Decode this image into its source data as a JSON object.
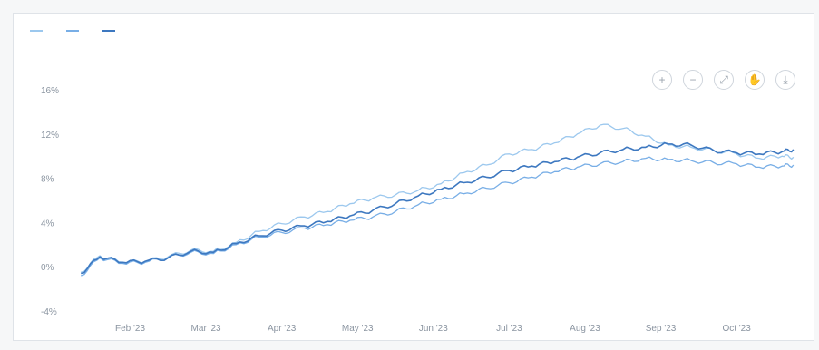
{
  "toolbar": {
    "zoom_in_label": "+",
    "zoom_out_label": "−",
    "autoscale_label": "⤢",
    "pan_label": "✋",
    "download_label": "⤓"
  },
  "chart_data": {
    "type": "line",
    "title": "",
    "xlabel": "",
    "ylabel": "",
    "legend_position": "top-left",
    "grid": false,
    "ylim": [
      -4,
      16
    ],
    "y_ticks": [
      -4,
      0,
      4,
      8,
      12,
      16
    ],
    "y_tick_labels": [
      "-4%",
      "0%",
      "4%",
      "8%",
      "12%",
      "16%"
    ],
    "x_tick_labels": [
      "Feb '23",
      "Mar '23",
      "Apr '23",
      "May '23",
      "Jun '23",
      "Jul '23",
      "Aug '23",
      "Sep '23",
      "Oct '23"
    ],
    "x_tick_positions": [
      1,
      2,
      3,
      4,
      5,
      6,
      7,
      8,
      9
    ],
    "xlim": [
      0.3,
      9.8
    ],
    "x": [
      0.35,
      0.6,
      0.9,
      1.2,
      1.5,
      1.8,
      2.1,
      2.4,
      2.7,
      3.0,
      3.3,
      3.6,
      3.9,
      4.2,
      4.5,
      4.8,
      5.1,
      5.4,
      5.7,
      6.0,
      6.3,
      6.6,
      6.9,
      7.2,
      7.5,
      7.8,
      8.1,
      8.4,
      8.7,
      9.0,
      9.3,
      9.6,
      9.75
    ],
    "series": [
      {
        "name": "",
        "color": "#9cc8ee",
        "values": [
          -0.5,
          1.0,
          0.4,
          0.5,
          0.9,
          1.5,
          1.4,
          2.2,
          3.2,
          3.9,
          4.5,
          5.0,
          5.7,
          6.2,
          6.5,
          6.9,
          7.5,
          8.5,
          9.2,
          10.2,
          10.6,
          11.2,
          12.0,
          12.8,
          12.5,
          11.8,
          11.0,
          10.8,
          10.5,
          10.2,
          9.8,
          10.0,
          9.9
        ]
      },
      {
        "name": "",
        "color": "#78aee6",
        "values": [
          -0.8,
          0.8,
          0.3,
          0.4,
          0.8,
          1.3,
          1.2,
          2.0,
          2.7,
          3.1,
          3.5,
          3.8,
          4.2,
          4.5,
          5.0,
          5.6,
          6.1,
          6.6,
          7.1,
          7.6,
          8.1,
          8.6,
          9.0,
          9.3,
          9.5,
          9.8,
          9.7,
          9.6,
          9.4,
          9.3,
          9.0,
          9.1,
          9.2
        ]
      },
      {
        "name": "",
        "color": "#3d78c0",
        "values": [
          -0.6,
          0.9,
          0.4,
          0.5,
          0.8,
          1.4,
          1.3,
          2.1,
          2.8,
          3.3,
          3.7,
          4.1,
          4.6,
          5.1,
          5.7,
          6.4,
          7.0,
          7.6,
          8.1,
          8.7,
          9.1,
          9.5,
          9.9,
          10.3,
          10.6,
          10.8,
          11.1,
          11.0,
          10.5,
          10.3,
          10.2,
          10.4,
          10.6
        ]
      }
    ]
  }
}
